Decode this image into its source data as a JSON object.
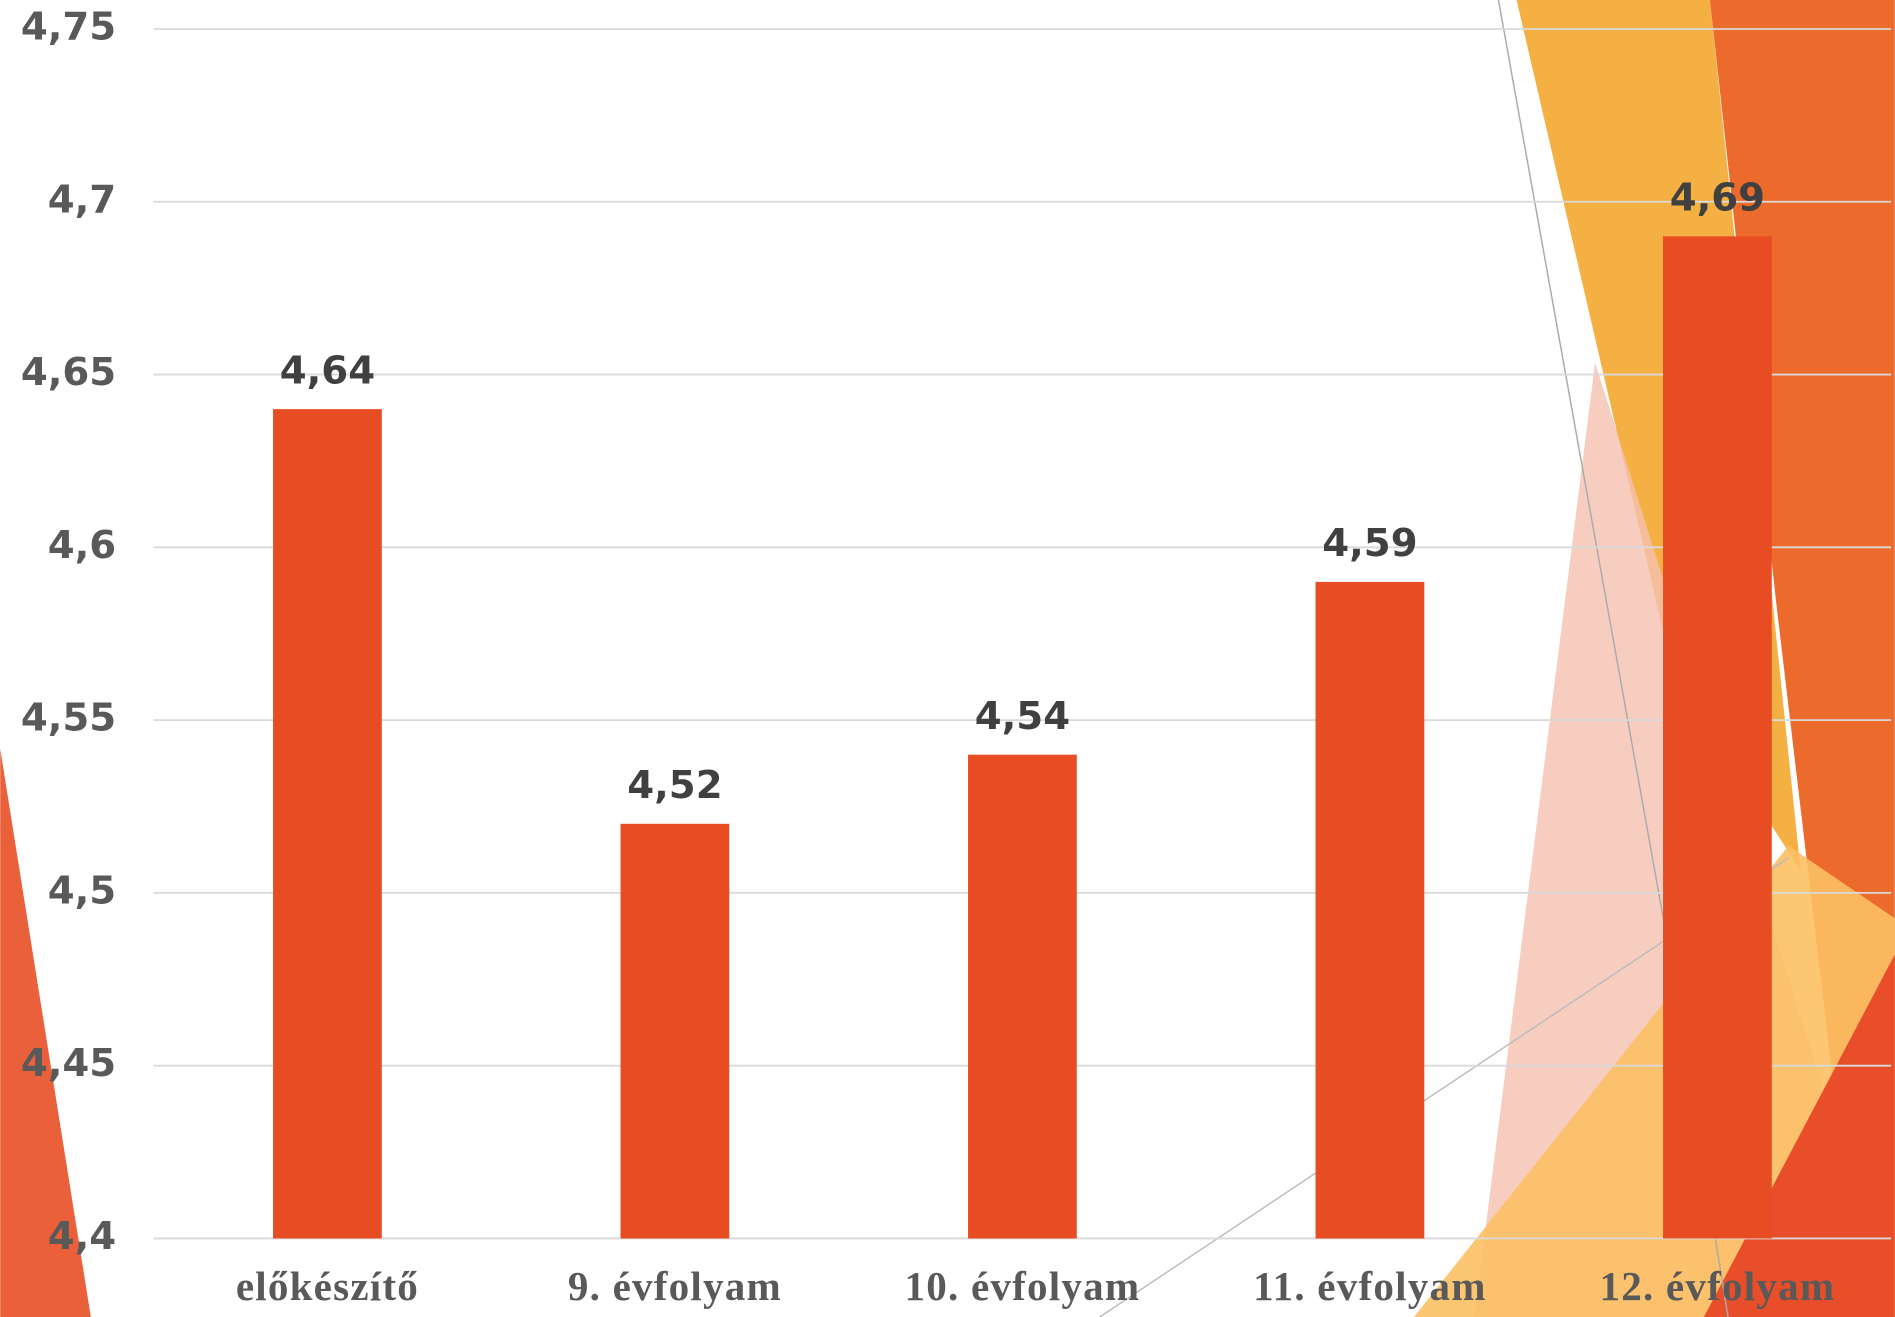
{
  "chart_data": {
    "type": "bar",
    "categories": [
      "előkészítő",
      "9. évfolyam",
      "10. évfolyam",
      "11. évfolyam",
      "12. évfolyam"
    ],
    "values": [
      4.64,
      4.52,
      4.54,
      4.59,
      4.69
    ],
    "value_labels": [
      "4,64",
      "4,52",
      "4,54",
      "4,59",
      "4,69"
    ],
    "color": "#e84c22",
    "ylim": [
      4.4,
      4.75
    ],
    "yticks": [
      {
        "value": 4.4,
        "label": "4,4"
      },
      {
        "value": 4.45,
        "label": "4,45"
      },
      {
        "value": 4.5,
        "label": "4,5"
      },
      {
        "value": 4.55,
        "label": "4,55"
      },
      {
        "value": 4.6,
        "label": "4,6"
      },
      {
        "value": 4.65,
        "label": "4,65"
      },
      {
        "value": 4.7,
        "label": "4,7"
      },
      {
        "value": 4.75,
        "label": "4,75"
      }
    ],
    "grid": true
  }
}
